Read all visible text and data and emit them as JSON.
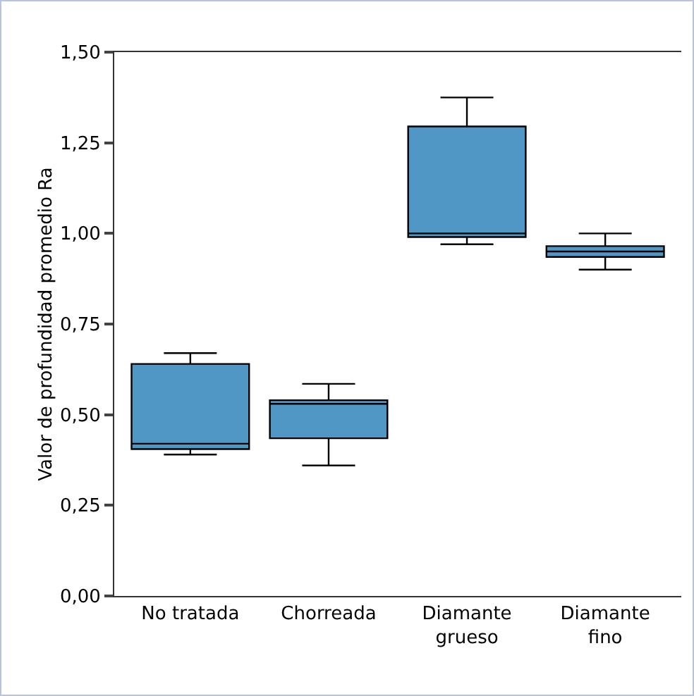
{
  "chart_data": {
    "type": "box",
    "ylabel": "Valor de profundidad promedio Ra",
    "categories": [
      "No tratada",
      "Chorreada",
      "Diamante grueso",
      "Diamante fino"
    ],
    "boxes": [
      {
        "low": 0.39,
        "q1": 0.405,
        "median": 0.42,
        "q3": 0.64,
        "high": 0.67
      },
      {
        "low": 0.36,
        "q1": 0.435,
        "median": 0.53,
        "q3": 0.54,
        "high": 0.585
      },
      {
        "low": 0.97,
        "q1": 0.99,
        "median": 1.0,
        "q3": 1.295,
        "high": 1.375
      },
      {
        "low": 0.9,
        "q1": 0.935,
        "median": 0.95,
        "q3": 0.965,
        "high": 1.0
      }
    ],
    "color": "#5197c6",
    "ylim": [
      0,
      1.5
    ],
    "yticks": [
      {
        "value": 0,
        "label": "0,00"
      },
      {
        "value": 0.25,
        "label": "0,25"
      },
      {
        "value": 0.5,
        "label": "0,50"
      },
      {
        "value": 0.75,
        "label": "0,75"
      },
      {
        "value": 1,
        "label": "1,00"
      },
      {
        "value": 1.25,
        "label": "1,25"
      },
      {
        "value": 1.5,
        "label": "1,50"
      }
    ],
    "grid": false
  }
}
